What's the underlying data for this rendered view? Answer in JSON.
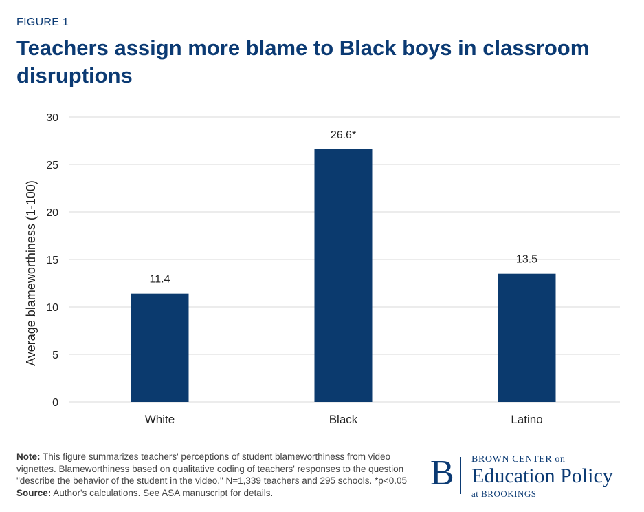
{
  "figure_label": "FIGURE 1",
  "title": "Teachers assign more blame to Black boys in classroom disruptions",
  "colors": {
    "bar": "#0b3a6e",
    "title": "#0b3a73",
    "grid": "#d9d9d9"
  },
  "chart_data": {
    "type": "bar",
    "categories": [
      "White",
      "Black",
      "Latino"
    ],
    "values": [
      11.4,
      26.6,
      13.5
    ],
    "data_labels": [
      "11.4",
      "26.6*",
      "13.5"
    ],
    "ylabel": "Average blameworthiness (1-100)",
    "ylim": [
      0,
      30
    ],
    "yticks": [
      0,
      5,
      10,
      15,
      20,
      25,
      30
    ],
    "grid": true,
    "legend": "none"
  },
  "note": {
    "note_label": "Note:",
    "note_text": " This figure summarizes teachers' perceptions of student blameworthiness from video vignettes. Blameworthiness based on qualitative coding of teachers' responses to the question \"describe the behavior of the student in the video.\" N=1,339 teachers and 295 schools. *p<0.05 ",
    "source_label": "Source:",
    "source_text": " Author's calculations. See ASA manuscript for details."
  },
  "logo": {
    "mark": "B",
    "line1": "BROWN CENTER on",
    "line2": "Education Policy",
    "line3": "at BROOKINGS"
  }
}
